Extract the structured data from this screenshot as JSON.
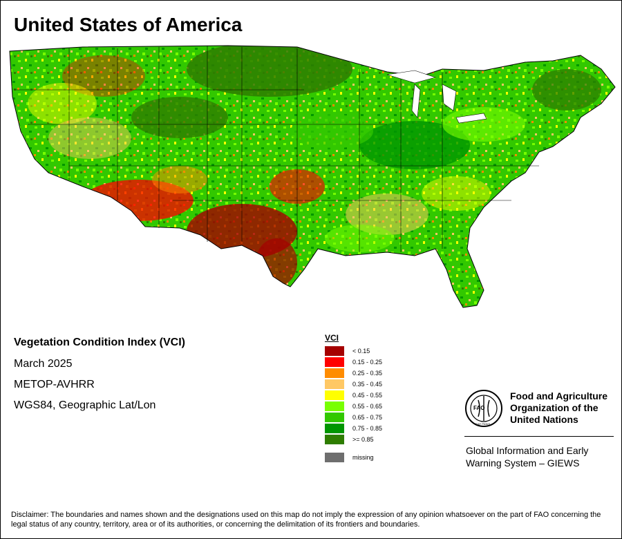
{
  "title": "United States of America",
  "info": {
    "heading": "Vegetation Condition Index (VCI)",
    "period": "March 2025",
    "sensor": "METOP-AVHRR",
    "projection": "WGS84, Geographic Lat/Lon"
  },
  "legend": {
    "title": "VCI",
    "classes": [
      {
        "label": "< 0.15",
        "color": "#a50000"
      },
      {
        "label": "0.15 - 0.25",
        "color": "#ff0000"
      },
      {
        "label": "0.25 - 0.35",
        "color": "#ff8c00"
      },
      {
        "label": "0.35 - 0.45",
        "color": "#ffc864"
      },
      {
        "label": "0.45 - 0.55",
        "color": "#ffff00"
      },
      {
        "label": "0.55 - 0.65",
        "color": "#78ff00"
      },
      {
        "label": "0.65 - 0.75",
        "color": "#32c800"
      },
      {
        "label": "0.75 - 0.85",
        "color": "#009600"
      },
      {
        "label": ">= 0.85",
        "color": "#2e7d00"
      }
    ],
    "missing": {
      "label": "missing",
      "color": "#6e6e6e"
    }
  },
  "fao": {
    "name_line1": "Food and Agriculture",
    "name_line2": "Organization of the",
    "name_line3": "United Nations",
    "logo_text": "FAO",
    "logo_motto": "FIAT PANIS",
    "giews_line1": "Global Information and Early",
    "giews_line2": "Warning System – GIEWS"
  },
  "disclaimer": "Disclaimer: The boundaries and names shown and the designations used on this map do not imply the expression of any opinion whatsoever on the part of FAO concerning the legal status of any country, territory, area or of its authorities, or concerning the delimitation of its frontiers and boundaries."
}
